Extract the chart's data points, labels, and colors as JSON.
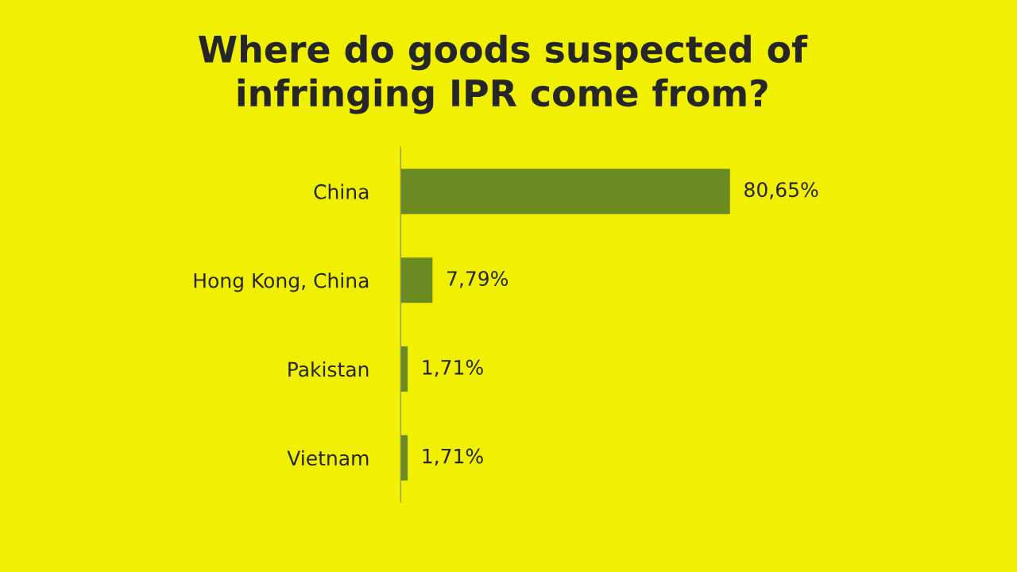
{
  "chart_data": {
    "type": "bar",
    "orientation": "horizontal",
    "title": "Where do goods suspected of\ninfringing IPR come from?",
    "categories": [
      "China",
      "Hong Kong, China",
      "Pakistan",
      "Vietnam"
    ],
    "values": [
      80.65,
      7.79,
      1.71,
      1.71
    ],
    "value_labels": [
      "80,65%",
      "7,79%",
      "1,71%",
      "1,71%"
    ],
    "color": "#6b8a22",
    "grid": false,
    "legend": false
  }
}
